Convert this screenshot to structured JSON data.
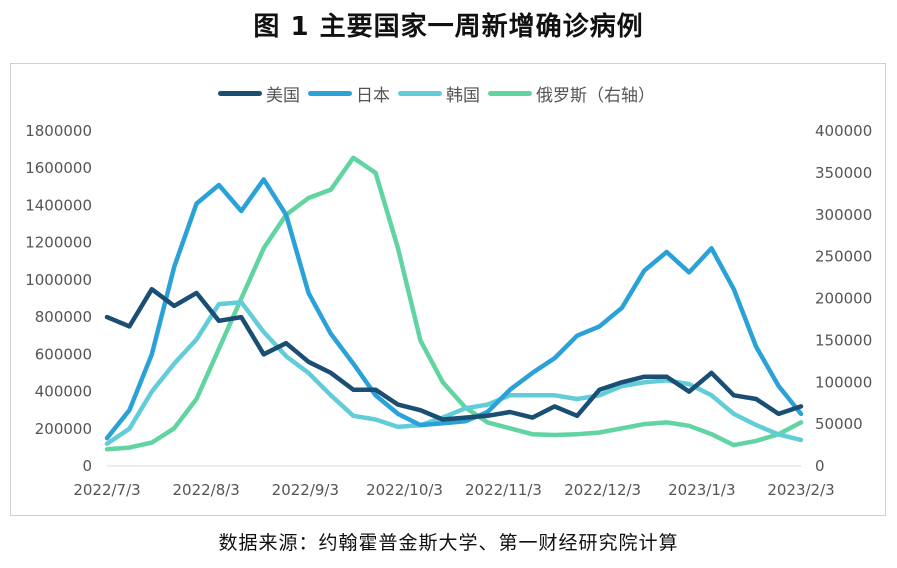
{
  "title": "图 1  主要国家一周新增确诊病例",
  "source": "数据来源：约翰霍普金斯大学、第一财经研究院计算",
  "chart_data": {
    "type": "line",
    "title": "图 1  主要国家一周新增确诊病例",
    "legend_position": "top",
    "grid": false,
    "x": [
      "2022/7/3",
      "2022/7/10",
      "2022/7/17",
      "2022/7/24",
      "2022/7/31",
      "2022/8/7",
      "2022/8/14",
      "2022/8/21",
      "2022/8/28",
      "2022/9/4",
      "2022/9/11",
      "2022/9/18",
      "2022/9/25",
      "2022/10/2",
      "2022/10/9",
      "2022/10/16",
      "2022/10/23",
      "2022/10/30",
      "2022/11/6",
      "2022/11/13",
      "2022/11/20",
      "2022/11/27",
      "2022/12/4",
      "2022/12/11",
      "2022/12/18",
      "2022/12/25",
      "2023/1/1",
      "2023/1/8",
      "2023/1/15",
      "2023/1/22",
      "2023/1/29",
      "2023/2/5"
    ],
    "x_tick_labels": [
      "2022/7/3",
      "2022/8/3",
      "2022/9/3",
      "2022/10/3",
      "2022/11/3",
      "2022/12/3",
      "2023/1/3",
      "2023/2/3"
    ],
    "y_left": {
      "ylim": [
        0,
        1800000
      ],
      "ticks": [
        "0",
        "200000",
        "400000",
        "600000",
        "800000",
        "1000000",
        "1200000",
        "1400000",
        "1600000",
        "1800000"
      ]
    },
    "y_right": {
      "ylim": [
        0,
        400000
      ],
      "ticks": [
        "0",
        "50000",
        "100000",
        "150000",
        "200000",
        "250000",
        "300000",
        "350000",
        "400000"
      ]
    },
    "series": [
      {
        "name": "美国",
        "axis": "left",
        "color": "#1a4f73",
        "values": [
          800000,
          750000,
          950000,
          860000,
          930000,
          780000,
          800000,
          600000,
          660000,
          560000,
          500000,
          410000,
          410000,
          330000,
          300000,
          250000,
          260000,
          270000,
          290000,
          260000,
          320000,
          270000,
          410000,
          450000,
          480000,
          480000,
          400000,
          500000,
          380000,
          360000,
          280000,
          320000
        ]
      },
      {
        "name": "日本",
        "axis": "left",
        "color": "#2aa2d8",
        "values": [
          150000,
          300000,
          600000,
          1070000,
          1410000,
          1510000,
          1370000,
          1540000,
          1350000,
          930000,
          710000,
          550000,
          380000,
          280000,
          220000,
          230000,
          240000,
          290000,
          410000,
          500000,
          580000,
          700000,
          750000,
          850000,
          1050000,
          1150000,
          1040000,
          1170000,
          950000,
          640000,
          430000,
          280000
        ]
      },
      {
        "name": "韩国",
        "axis": "left",
        "color": "#62cdd9",
        "values": [
          120000,
          200000,
          400000,
          550000,
          680000,
          870000,
          880000,
          720000,
          590000,
          500000,
          380000,
          270000,
          250000,
          210000,
          220000,
          260000,
          310000,
          330000,
          380000,
          380000,
          380000,
          360000,
          380000,
          430000,
          450000,
          460000,
          440000,
          380000,
          280000,
          220000,
          170000,
          140000
        ]
      },
      {
        "name": "俄罗斯（右轴）",
        "axis": "right",
        "color": "#61d4a2",
        "values": [
          20000,
          22000,
          28000,
          45000,
          80000,
          140000,
          200000,
          260000,
          300000,
          320000,
          330000,
          368000,
          350000,
          260000,
          150000,
          100000,
          70000,
          52000,
          45000,
          38000,
          37000,
          38000,
          40000,
          45000,
          50000,
          52000,
          48000,
          38000,
          25000,
          30000,
          38000,
          52000
        ]
      }
    ]
  }
}
